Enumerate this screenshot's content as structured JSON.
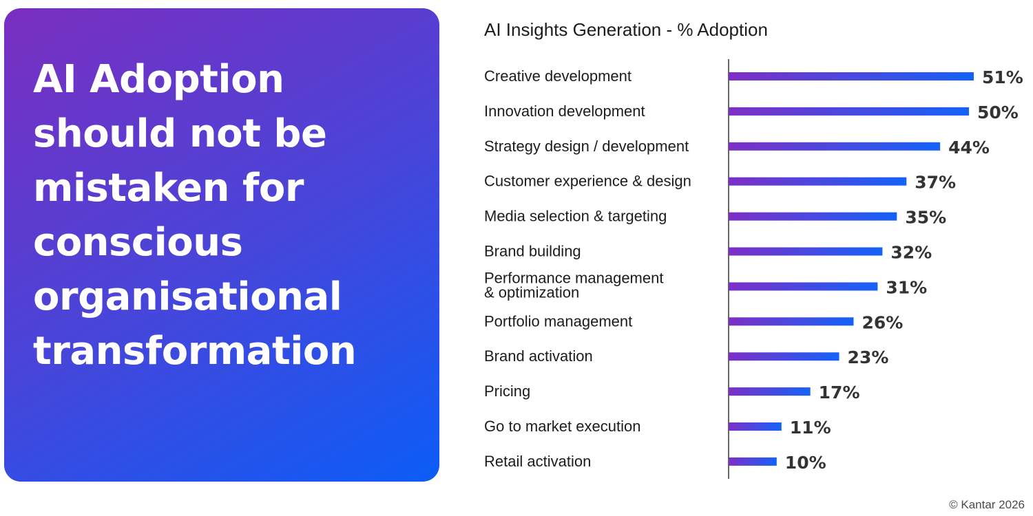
{
  "hero": {
    "title_lines": [
      "AI Adoption",
      "should not be",
      "mistaken for",
      "conscious",
      "organisational",
      "transformation"
    ]
  },
  "footer": {
    "copyright": "© Kantar 2026"
  },
  "colors": {
    "bar_start": "#7e2fc6",
    "bar_end": "#1462f8",
    "text": "#1c1c1c",
    "value_text": "#333333",
    "axis": "#333333"
  },
  "chart_data": {
    "type": "bar",
    "orientation": "horizontal",
    "title": "AI Insights Generation - % Adoption",
    "xlabel": "",
    "ylabel": "",
    "unit": "%",
    "xlim": [
      0,
      51
    ],
    "grid": false,
    "categories": [
      [
        "Creative development"
      ],
      [
        "Innovation development"
      ],
      [
        "Strategy design / development"
      ],
      [
        "Customer experience & design"
      ],
      [
        "Media selection & targeting"
      ],
      [
        "Brand building"
      ],
      [
        "Performance management",
        "& optimization"
      ],
      [
        "Portfolio management"
      ],
      [
        "Brand activation"
      ],
      [
        "Pricing"
      ],
      [
        "Go to market execution"
      ],
      [
        "Retail activation"
      ]
    ],
    "values": [
      51,
      50,
      44,
      37,
      35,
      32,
      31,
      26,
      23,
      17,
      11,
      10
    ],
    "value_labels": [
      "51%",
      "50%",
      "44%",
      "37%",
      "35%",
      "32%",
      "31%",
      "26%",
      "23%",
      "17%",
      "11%",
      "10%"
    ]
  }
}
